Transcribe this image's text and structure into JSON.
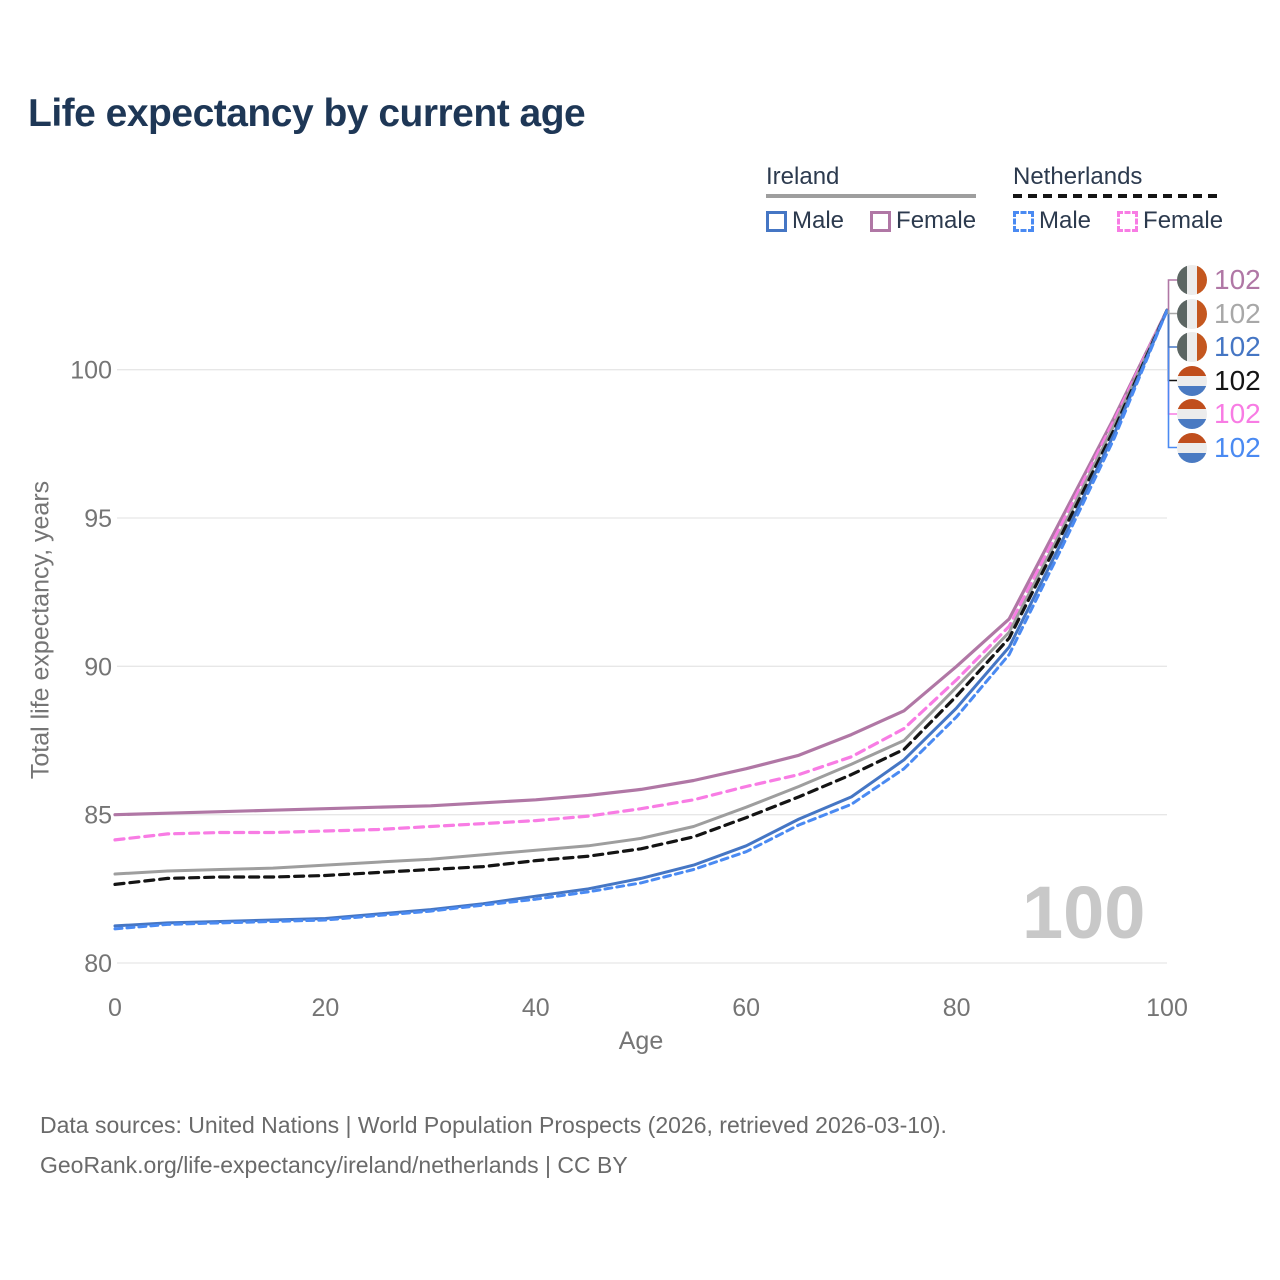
{
  "title": "Life expectancy by current age",
  "watermark": "100",
  "footer": {
    "line1": "Data sources: United Nations | World Population Prospects (2026, retrieved 2026-03-10).",
    "line2": "GeoRank.org/life-expectancy/ireland/netherlands | CC BY"
  },
  "legend": {
    "groups": [
      {
        "label": "Ireland",
        "line_style": "solid",
        "underline_color": "#9e9e9e",
        "items": [
          {
            "label": "Male",
            "color": "#4576c4",
            "dashed": false
          },
          {
            "label": "Female",
            "color": "#b077a5",
            "dashed": false
          }
        ]
      },
      {
        "label": "Netherlands",
        "line_style": "dashed",
        "underline_color": "#141414",
        "items": [
          {
            "label": "Male",
            "color": "#4a8af2",
            "dashed": true
          },
          {
            "label": "Female",
            "color": "#f87ce4",
            "dashed": true
          }
        ]
      }
    ]
  },
  "chart_data": {
    "type": "line",
    "title": "Life expectancy by current age",
    "xlabel": "Age",
    "ylabel": "Total life expectancy, years",
    "xlim": [
      0,
      100
    ],
    "ylim": [
      79,
      103
    ],
    "xticks": [
      0,
      20,
      40,
      60,
      80,
      100
    ],
    "yticks": [
      80,
      85,
      90,
      95,
      100
    ],
    "grid": "horizontal",
    "legend_position": "top-right",
    "x": [
      0,
      5,
      10,
      15,
      20,
      25,
      30,
      35,
      40,
      45,
      50,
      55,
      60,
      65,
      70,
      75,
      80,
      85,
      90,
      95,
      100
    ],
    "series": [
      {
        "name": "Ireland Female",
        "country": "Ireland",
        "sex": "Female",
        "color": "#b077a5",
        "dash": "",
        "width": 3.2,
        "values": [
          85.0,
          85.05,
          85.1,
          85.15,
          85.2,
          85.25,
          85.3,
          85.4,
          85.5,
          85.65,
          85.85,
          86.15,
          86.55,
          87.0,
          87.7,
          88.5,
          90.0,
          91.6,
          95.0,
          98.4,
          102.0
        ]
      },
      {
        "name": "Netherlands Female",
        "country": "Netherlands",
        "sex": "Female",
        "color": "#f87ce4",
        "dash": "9 6",
        "width": 3.2,
        "values": [
          84.15,
          84.35,
          84.4,
          84.4,
          84.45,
          84.5,
          84.6,
          84.7,
          84.8,
          84.95,
          85.2,
          85.5,
          85.95,
          86.35,
          86.95,
          87.9,
          89.55,
          91.35,
          94.8,
          98.3,
          102.0
        ]
      },
      {
        "name": "Ireland Total",
        "country": "Ireland",
        "sex": "Total",
        "color": "#9e9e9e",
        "dash": "",
        "width": 3,
        "values": [
          83.0,
          83.1,
          83.15,
          83.2,
          83.3,
          83.4,
          83.5,
          83.65,
          83.8,
          83.95,
          84.2,
          84.6,
          85.25,
          85.95,
          86.7,
          87.5,
          89.3,
          91.15,
          94.6,
          98.15,
          102.0
        ]
      },
      {
        "name": "Netherlands Total",
        "country": "Netherlands",
        "sex": "Total",
        "color": "#141414",
        "dash": "9 6",
        "width": 3.2,
        "values": [
          82.65,
          82.85,
          82.9,
          82.9,
          82.95,
          83.05,
          83.15,
          83.25,
          83.45,
          83.6,
          83.85,
          84.25,
          84.9,
          85.6,
          86.35,
          87.2,
          89.0,
          90.95,
          94.45,
          98.0,
          102.0
        ]
      },
      {
        "name": "Ireland Male",
        "country": "Ireland",
        "sex": "Male",
        "color": "#4576c4",
        "dash": "",
        "width": 3,
        "values": [
          81.25,
          81.35,
          81.4,
          81.45,
          81.5,
          81.65,
          81.8,
          82.0,
          82.25,
          82.5,
          82.85,
          83.3,
          83.95,
          84.85,
          85.6,
          86.85,
          88.6,
          90.65,
          94.2,
          97.85,
          102.0
        ]
      },
      {
        "name": "Netherlands Male",
        "country": "Netherlands",
        "sex": "Male",
        "color": "#4a8af2",
        "dash": "7 5",
        "width": 3,
        "values": [
          81.15,
          81.3,
          81.35,
          81.4,
          81.45,
          81.6,
          81.75,
          81.95,
          82.15,
          82.4,
          82.7,
          83.15,
          83.75,
          84.65,
          85.35,
          86.55,
          88.3,
          90.4,
          94.0,
          97.7,
          102.0
        ]
      }
    ],
    "end_labels": [
      {
        "text": "102",
        "color": "#b077a5",
        "flag": "ireland",
        "series": "Ireland Female"
      },
      {
        "text": "102",
        "color": "#a8a8a8",
        "flag": "ireland",
        "series": "Ireland Total"
      },
      {
        "text": "102",
        "color": "#4576c4",
        "flag": "ireland",
        "series": "Ireland Male"
      },
      {
        "text": "102",
        "color": "#141414",
        "flag": "netherlands",
        "series": "Netherlands Total"
      },
      {
        "text": "102",
        "color": "#f87ce4",
        "flag": "netherlands",
        "series": "Netherlands Female"
      },
      {
        "text": "102",
        "color": "#4a8af2",
        "flag": "netherlands",
        "series": "Netherlands Male"
      }
    ],
    "colors": {
      "grid": "#e7e7e7",
      "tick_text": "#757575",
      "title_text": "#1e3756",
      "footer_text": "#6a6a6a",
      "watermark_text": "#c8c8c8"
    }
  }
}
